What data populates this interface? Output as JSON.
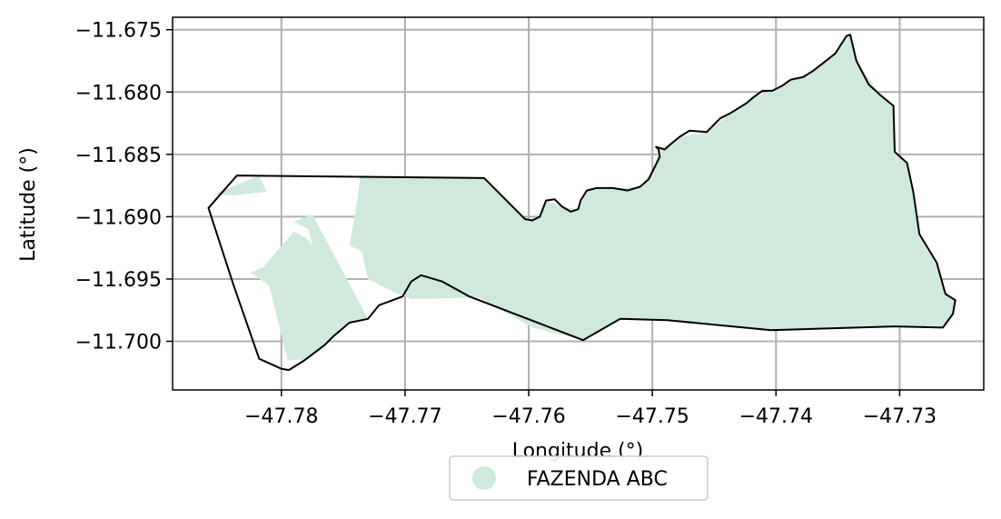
{
  "chart_data": {
    "type": "map",
    "xlabel": "Longitude (°)",
    "ylabel": "Latitude (°)",
    "xlim": [
      -47.7888,
      -47.7232
    ],
    "ylim": [
      -11.7039,
      -11.674
    ],
    "grid": true,
    "x_ticks": [
      -47.78,
      -47.77,
      -47.76,
      -47.75,
      -47.74,
      -47.73
    ],
    "x_tick_labels": [
      "−47.78",
      "−47.77",
      "−47.76",
      "−47.75",
      "−47.74",
      "−47.73"
    ],
    "y_ticks": [
      -11.675,
      -11.68,
      -11.685,
      -11.69,
      -11.695,
      -11.7
    ],
    "y_tick_labels": [
      "−11.675",
      "−11.680",
      "−11.685",
      "−11.690",
      "−11.695",
      "−11.700"
    ],
    "legend": {
      "placement": "bottom-center",
      "entries": [
        {
          "label": "FAZENDA ABC",
          "color": "#cfeadd"
        }
      ]
    },
    "colors": {
      "fill": "#cfeadd",
      "outline": "#000000",
      "grid": "#b0b0b0"
    },
    "outline_polygon": [
      [
        -47.7859,
        -11.6893
      ],
      [
        -47.7836,
        -11.6867
      ],
      [
        -47.7636,
        -11.6869
      ],
      [
        -47.7603,
        -11.6902
      ],
      [
        -47.7597,
        -11.6903
      ],
      [
        -47.7591,
        -11.69
      ],
      [
        -47.7589,
        -11.6895
      ],
      [
        -47.7586,
        -11.6887
      ],
      [
        -47.7579,
        -11.6886
      ],
      [
        -47.7573,
        -11.6892
      ],
      [
        -47.7566,
        -11.6896
      ],
      [
        -47.756,
        -11.6894
      ],
      [
        -47.7558,
        -11.6887
      ],
      [
        -47.7553,
        -11.6879
      ],
      [
        -47.7545,
        -11.6877
      ],
      [
        -47.7532,
        -11.6877
      ],
      [
        -47.752,
        -11.6879
      ],
      [
        -47.751,
        -11.6876
      ],
      [
        -47.7503,
        -11.687
      ],
      [
        -47.7498,
        -11.686
      ],
      [
        -47.7494,
        -11.6852
      ],
      [
        -47.7495,
        -11.6846
      ],
      [
        -47.7497,
        -11.6844
      ],
      [
        -47.749,
        -11.6846
      ],
      [
        -47.7483,
        -11.684
      ],
      [
        -47.7478,
        -11.6836
      ],
      [
        -47.747,
        -11.6831
      ],
      [
        -47.7456,
        -11.6832
      ],
      [
        -47.7451,
        -11.6827
      ],
      [
        -47.7445,
        -11.6821
      ],
      [
        -47.7437,
        -11.6817
      ],
      [
        -47.7424,
        -11.6809
      ],
      [
        -47.7418,
        -11.6804
      ],
      [
        -47.7411,
        -11.6799
      ],
      [
        -47.7403,
        -11.6799
      ],
      [
        -47.7395,
        -11.6795
      ],
      [
        -47.7388,
        -11.679
      ],
      [
        -47.7378,
        -11.6788
      ],
      [
        -47.737,
        -11.6783
      ],
      [
        -47.7361,
        -11.6776
      ],
      [
        -47.7352,
        -11.6769
      ],
      [
        -47.7343,
        -11.6755
      ],
      [
        -47.734,
        -11.6754
      ],
      [
        -47.7335,
        -11.6775
      ],
      [
        -47.7325,
        -11.6794
      ],
      [
        -47.7315,
        -11.6803
      ],
      [
        -47.7305,
        -11.6811
      ],
      [
        -47.7304,
        -11.6848
      ],
      [
        -47.7294,
        -11.6857
      ],
      [
        -47.7289,
        -11.688
      ],
      [
        -47.7284,
        -11.6914
      ],
      [
        -47.727,
        -11.6937
      ],
      [
        -47.7263,
        -11.6962
      ],
      [
        -47.7255,
        -11.6967
      ],
      [
        -47.7257,
        -11.6978
      ],
      [
        -47.7265,
        -11.6989
      ],
      [
        -47.7304,
        -11.6988
      ],
      [
        -47.7404,
        -11.6991
      ],
      [
        -47.7488,
        -11.6983
      ],
      [
        -47.7526,
        -11.6982
      ],
      [
        -47.7556,
        -11.6999
      ],
      [
        -47.7648,
        -11.6964
      ],
      [
        -47.767,
        -11.6952
      ],
      [
        -47.7687,
        -11.6947
      ],
      [
        -47.7695,
        -11.6952
      ],
      [
        -47.7702,
        -11.6964
      ],
      [
        -47.7721,
        -11.6971
      ],
      [
        -47.773,
        -11.6982
      ],
      [
        -47.7745,
        -11.6985
      ],
      [
        -47.7758,
        -11.6996
      ],
      [
        -47.7765,
        -11.7003
      ],
      [
        -47.7781,
        -11.7015
      ],
      [
        -47.7794,
        -11.7023
      ],
      [
        -47.78,
        -11.7022
      ],
      [
        -47.7818,
        -11.7014
      ],
      [
        -47.7839,
        -11.6954
      ]
    ],
    "fill_polygons": [
      [
        [
          -47.7736,
          -11.6867
        ],
        [
          -47.7636,
          -11.6869
        ],
        [
          -47.7603,
          -11.6902
        ],
        [
          -47.7591,
          -11.69
        ],
        [
          -47.7586,
          -11.6887
        ],
        [
          -47.7573,
          -11.6892
        ],
        [
          -47.756,
          -11.6894
        ],
        [
          -47.7553,
          -11.6879
        ],
        [
          -47.7532,
          -11.6877
        ],
        [
          -47.751,
          -11.6876
        ],
        [
          -47.7498,
          -11.686
        ],
        [
          -47.7495,
          -11.6846
        ],
        [
          -47.7478,
          -11.6836
        ],
        [
          -47.7456,
          -11.6832
        ],
        [
          -47.7437,
          -11.6817
        ],
        [
          -47.7418,
          -11.6804
        ],
        [
          -47.7403,
          -11.6799
        ],
        [
          -47.7388,
          -11.679
        ],
        [
          -47.737,
          -11.6783
        ],
        [
          -47.7352,
          -11.6769
        ],
        [
          -47.7343,
          -11.6755
        ],
        [
          -47.734,
          -11.6754
        ],
        [
          -47.7335,
          -11.6775
        ],
        [
          -47.7315,
          -11.6803
        ],
        [
          -47.7305,
          -11.6811
        ],
        [
          -47.7304,
          -11.6848
        ],
        [
          -47.7294,
          -11.6857
        ],
        [
          -47.7289,
          -11.688
        ],
        [
          -47.7284,
          -11.6914
        ],
        [
          -47.727,
          -11.6937
        ],
        [
          -47.7263,
          -11.6962
        ],
        [
          -47.7255,
          -11.6967
        ],
        [
          -47.7257,
          -11.6978
        ],
        [
          -47.7265,
          -11.6989
        ],
        [
          -47.7304,
          -11.6988
        ],
        [
          -47.7404,
          -11.6991
        ],
        [
          -47.7488,
          -11.6983
        ],
        [
          -47.7526,
          -11.6982
        ],
        [
          -47.7556,
          -11.6999
        ],
        [
          -47.7597,
          -11.6989
        ],
        [
          -47.764,
          -11.6965
        ],
        [
          -47.7695,
          -11.6966
        ],
        [
          -47.771,
          -11.696
        ],
        [
          -47.773,
          -11.695
        ],
        [
          -47.7735,
          -11.6928
        ],
        [
          -47.7745,
          -11.6923
        ],
        [
          -47.774,
          -11.6895
        ]
      ],
      [
        [
          -47.7814,
          -11.694
        ],
        [
          -47.779,
          -11.6912
        ],
        [
          -47.778,
          -11.6917
        ],
        [
          -47.7775,
          -11.6923
        ],
        [
          -47.7778,
          -11.691
        ],
        [
          -47.779,
          -11.6904
        ],
        [
          -47.7775,
          -11.6898
        ],
        [
          -47.773,
          -11.6982
        ],
        [
          -47.7745,
          -11.6985
        ],
        [
          -47.7758,
          -11.6996
        ],
        [
          -47.7781,
          -11.7015
        ],
        [
          -47.7795,
          -11.7015
        ],
        [
          -47.781,
          -11.6955
        ],
        [
          -47.7825,
          -11.6945
        ]
      ],
      [
        [
          -47.7855,
          -11.6882
        ],
        [
          -47.7818,
          -11.6867
        ],
        [
          -47.7812,
          -11.688
        ],
        [
          -47.784,
          -11.6883
        ]
      ]
    ]
  }
}
